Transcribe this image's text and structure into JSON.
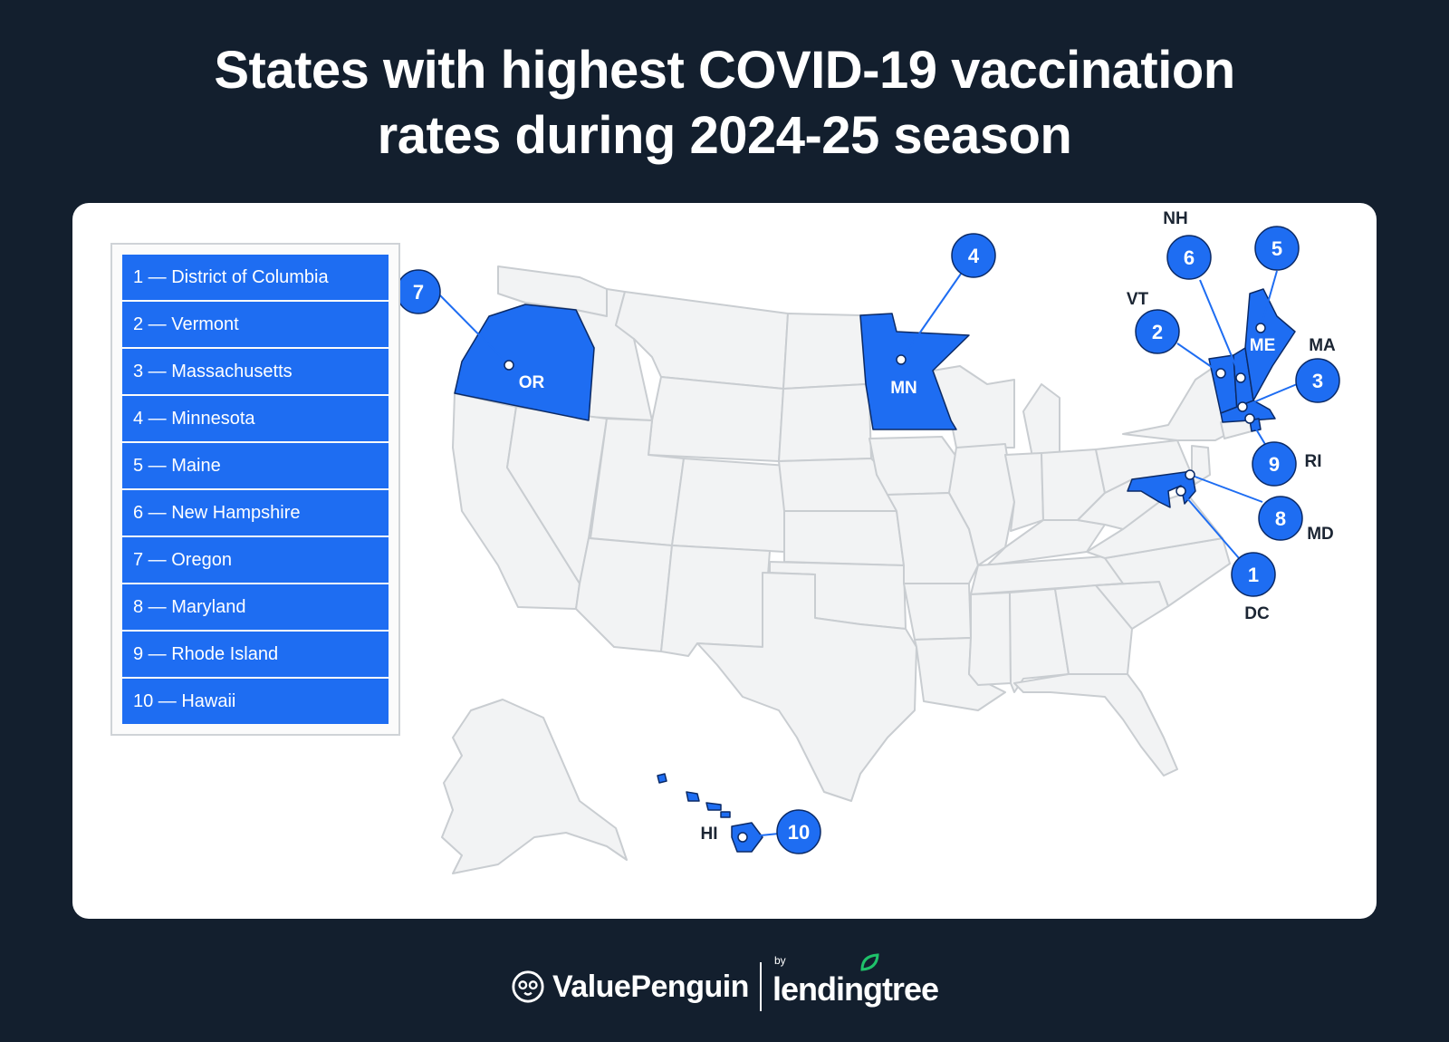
{
  "title": {
    "line1": "States with highest COVID-19 vaccination",
    "line2": "rates during 2024-25 season"
  },
  "legend": [
    {
      "rank": 1,
      "label": "1 — District of Columbia"
    },
    {
      "rank": 2,
      "label": "2 — Vermont"
    },
    {
      "rank": 3,
      "label": "3 — Massachusetts"
    },
    {
      "rank": 4,
      "label": "4 — Minnesota"
    },
    {
      "rank": 5,
      "label": "5 — Maine"
    },
    {
      "rank": 6,
      "label": "6 — New Hampshire"
    },
    {
      "rank": 7,
      "label": "7 — Oregon"
    },
    {
      "rank": 8,
      "label": "8 — Maryland"
    },
    {
      "rank": 9,
      "label": "9 — Rhode Island"
    },
    {
      "rank": 10,
      "label": "10 — Hawaii"
    }
  ],
  "markers": [
    {
      "rank": "1",
      "state": "DC"
    },
    {
      "rank": "2",
      "state": "VT"
    },
    {
      "rank": "3",
      "state": "MA"
    },
    {
      "rank": "4",
      "state": "MN"
    },
    {
      "rank": "5",
      "state": "ME"
    },
    {
      "rank": "6",
      "state": "NH"
    },
    {
      "rank": "7",
      "state": "OR"
    },
    {
      "rank": "8",
      "state": "MD"
    },
    {
      "rank": "9",
      "state": "RI"
    },
    {
      "rank": "10",
      "state": "HI"
    }
  ],
  "colors": {
    "background": "#131f2e",
    "highlight": "#1e6df2",
    "state_fill": "#f2f3f4",
    "state_border": "#c9cdd1"
  },
  "footer": {
    "brand": "ValuePenguin",
    "by": "by",
    "partner": "lendingtree"
  }
}
